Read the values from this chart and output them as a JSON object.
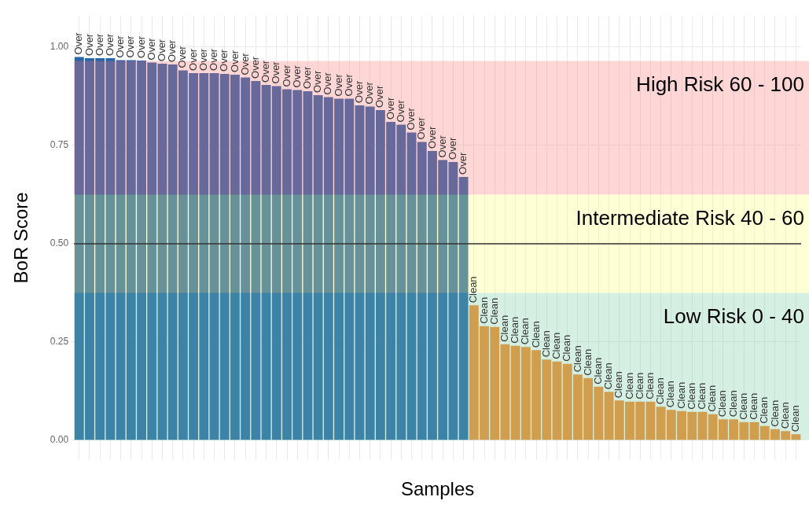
{
  "chart_data": {
    "type": "bar",
    "xlabel": "Samples",
    "ylabel": "BoR Score",
    "categories": [
      null,
      null,
      null,
      null,
      null,
      null,
      null,
      null,
      null,
      null,
      null,
      null,
      null,
      null,
      null,
      null,
      null,
      null,
      null,
      null,
      null,
      null,
      null,
      null,
      null,
      null,
      null,
      null,
      null,
      null,
      null,
      null,
      null,
      null,
      null,
      null,
      null,
      null,
      null,
      null,
      null,
      null,
      null,
      null,
      null,
      null,
      null,
      null,
      null,
      null,
      null,
      null,
      null,
      null,
      null,
      null,
      null,
      null,
      null,
      null,
      null,
      null,
      null,
      null,
      null,
      null,
      null,
      null,
      null,
      null
    ],
    "values": [
      0.975,
      0.972,
      0.972,
      0.972,
      0.967,
      0.967,
      0.966,
      0.961,
      0.958,
      0.956,
      0.941,
      0.934,
      0.934,
      0.934,
      0.932,
      0.93,
      0.923,
      0.914,
      0.904,
      0.901,
      0.893,
      0.891,
      0.888,
      0.878,
      0.873,
      0.869,
      0.869,
      0.852,
      0.849,
      0.84,
      0.81,
      0.803,
      0.783,
      0.759,
      0.736,
      0.713,
      0.708,
      0.67,
      0.343,
      0.29,
      0.288,
      0.244,
      0.24,
      0.237,
      0.229,
      0.205,
      0.2,
      0.194,
      0.167,
      0.158,
      0.136,
      0.123,
      0.101,
      0.098,
      0.098,
      0.098,
      0.085,
      0.077,
      0.074,
      0.072,
      0.072,
      0.066,
      0.053,
      0.053,
      0.046,
      0.046,
      0.036,
      0.028,
      0.023,
      0.015
    ],
    "colors": [
      "#2664ab",
      "#2664ab",
      "#2664ab",
      "#2664ab",
      "#2664ab",
      "#2664ab",
      "#2664ab",
      "#2664ab",
      "#2664ab",
      "#2664ab",
      "#2664ab",
      "#2664ab",
      "#2664ab",
      "#2664ab",
      "#2664ab",
      "#2664ab",
      "#2664ab",
      "#2664ab",
      "#2664ab",
      "#2664ab",
      "#2664ab",
      "#2664ab",
      "#2664ab",
      "#2664ab",
      "#2664ab",
      "#2664ab",
      "#2664ab",
      "#2664ab",
      "#2664ab",
      "#2664ab",
      "#2664ab",
      "#2664ab",
      "#2664ab",
      "#2664ab",
      "#2664ab",
      "#2664ab",
      "#2664ab",
      "#2664ab",
      "#fa8a2a",
      "#fa8a2a",
      "#fa8a2a",
      "#fa8a2a",
      "#fa8a2a",
      "#fa8a2a",
      "#fa8a2a",
      "#fa8a2a",
      "#fa8a2a",
      "#fa8a2a",
      "#fa8a2a",
      "#fa8a2a",
      "#fa8a2a",
      "#fa8a2a",
      "#fa8a2a",
      "#fa8a2a",
      "#fa8a2a",
      "#fa8a2a",
      "#fa8a2a",
      "#fa8a2a",
      "#fa8a2a",
      "#fa8a2a",
      "#fa8a2a",
      "#fa8a2a",
      "#fa8a2a",
      "#fa8a2a",
      "#fa8a2a",
      "#fa8a2a",
      "#fa8a2a",
      "#fa8a2a",
      "#fa8a2a",
      "#fa8a2a"
    ],
    "value_labels": [
      "Over",
      "Over",
      "Over",
      "Over",
      "Over",
      "Over",
      "Over",
      "Over",
      "Over",
      "Over",
      "Over",
      "Over",
      "Over",
      "Over",
      "Over",
      "Over",
      "Over",
      "Over",
      "Over",
      "Over",
      "Over",
      "Over",
      "Over",
      "Over",
      "Over",
      "Over",
      "Over",
      "Over",
      "Over",
      "Over",
      "Over",
      "Over",
      "Over",
      "Over",
      "Over",
      "Over",
      "Over",
      "Over",
      "Clean",
      "Clean",
      "Clean",
      "Clean",
      "Clean",
      "Clean",
      "Clean",
      "Clean",
      "Clean",
      "Clean",
      "Clean",
      "Clean",
      "Clean",
      "Clean",
      "Clean",
      "Clean",
      "Clean",
      "Clean",
      "Clean",
      "Clean",
      "Clean",
      "Clean",
      "Clean",
      "Clean",
      "Clean",
      "Clean",
      "Clean",
      "Clean",
      "Clean",
      "Clean",
      "Clean",
      "Clean"
    ],
    "ylim": [
      -0.05,
      1.08
    ],
    "yticks": [
      {
        "value": 0,
        "label": "0.00"
      },
      {
        "value": 0.25,
        "label": "0.25"
      },
      {
        "value": 0.5,
        "label": "0.50"
      },
      {
        "value": 0.75,
        "label": "0.75"
      },
      {
        "value": 1,
        "label": "1.00"
      }
    ],
    "bands": [
      {
        "axis": "y",
        "from": 0.625,
        "to": 0.965,
        "label": "High Risk 60 - 100",
        "color": "#ff7777"
      },
      {
        "axis": "y",
        "from": 0.375,
        "to": 0.625,
        "label": "Intermediate Risk 40 - 60",
        "color": "#ffff73"
      },
      {
        "axis": "y",
        "from": 0,
        "to": 0.375,
        "label": "Low Risk 0 - 40",
        "color": "#73cda2"
      }
    ],
    "ref_lines": [
      {
        "axis": "y",
        "value": 0.5,
        "color": "#333333"
      }
    ],
    "grid": true,
    "legend": false
  }
}
